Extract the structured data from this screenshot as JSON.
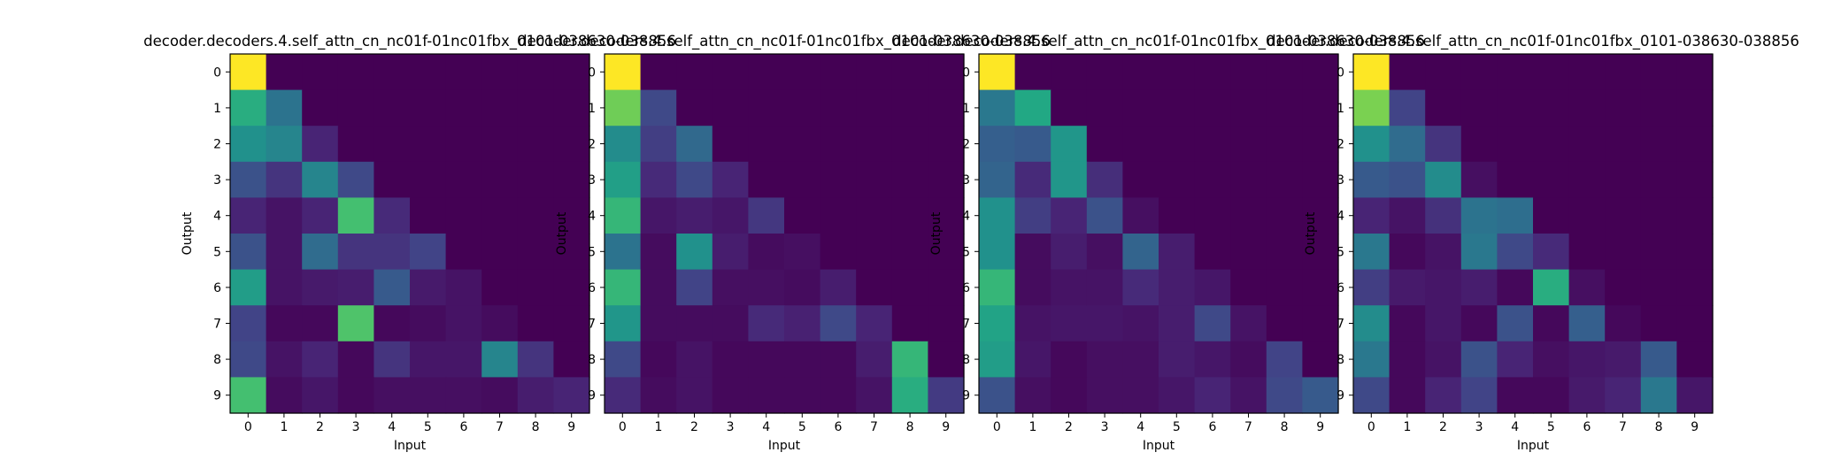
{
  "figure": {
    "background": "#ffffff",
    "colormap": "viridis"
  },
  "chart_data": [
    {
      "type": "heatmap",
      "title": "decoder.decoders.4.self_attn_cn_nc01f-01nc01fbx_0101-038630-038856",
      "xlabel": "Input",
      "ylabel": "Output",
      "x_ticks": [
        "0",
        "1",
        "2",
        "3",
        "4",
        "5",
        "6",
        "7",
        "8",
        "9"
      ],
      "y_ticks": [
        "0",
        "1",
        "2",
        "3",
        "4",
        "5",
        "6",
        "7",
        "8",
        "9"
      ],
      "grid": false,
      "values": [
        [
          1.0,
          0,
          0,
          0,
          0,
          0,
          0,
          0,
          0,
          0
        ],
        [
          0.62,
          0.38,
          0,
          0,
          0,
          0,
          0,
          0,
          0,
          0
        ],
        [
          0.5,
          0.45,
          0.1,
          0,
          0,
          0,
          0,
          0,
          0,
          0
        ],
        [
          0.25,
          0.15,
          0.45,
          0.22,
          0,
          0,
          0,
          0,
          0,
          0
        ],
        [
          0.1,
          0.05,
          0.1,
          0.7,
          0.12,
          0,
          0,
          0,
          0,
          0
        ],
        [
          0.25,
          0.05,
          0.35,
          0.15,
          0.15,
          0.2,
          0,
          0,
          0,
          0
        ],
        [
          0.55,
          0.05,
          0.07,
          0.08,
          0.28,
          0.07,
          0.05,
          0,
          0,
          0
        ],
        [
          0.2,
          0.02,
          0.02,
          0.72,
          0.02,
          0.03,
          0.05,
          0.03,
          0,
          0
        ],
        [
          0.22,
          0.05,
          0.1,
          0.02,
          0.15,
          0.06,
          0.06,
          0.45,
          0.15,
          0
        ],
        [
          0.7,
          0.03,
          0.06,
          0.02,
          0.04,
          0.04,
          0.04,
          0.03,
          0.08,
          0.1
        ]
      ]
    },
    {
      "type": "heatmap",
      "title": "decoder.decoders.4.self_attn_cn_nc01f-01nc01fbx_0101-038630-038856",
      "xlabel": "Input",
      "ylabel": "Output",
      "x_ticks": [
        "0",
        "1",
        "2",
        "3",
        "4",
        "5",
        "6",
        "7",
        "8",
        "9"
      ],
      "y_ticks": [
        "0",
        "1",
        "2",
        "3",
        "4",
        "5",
        "6",
        "7",
        "8",
        "9"
      ],
      "grid": false,
      "values": [
        [
          1.0,
          0,
          0,
          0,
          0,
          0,
          0,
          0,
          0,
          0
        ],
        [
          0.78,
          0.22,
          0,
          0,
          0,
          0,
          0,
          0,
          0,
          0
        ],
        [
          0.48,
          0.18,
          0.34,
          0,
          0,
          0,
          0,
          0,
          0,
          0
        ],
        [
          0.56,
          0.12,
          0.22,
          0.1,
          0,
          0,
          0,
          0,
          0,
          0
        ],
        [
          0.66,
          0.06,
          0.08,
          0.06,
          0.16,
          0,
          0,
          0,
          0,
          0
        ],
        [
          0.38,
          0.03,
          0.5,
          0.08,
          0.03,
          0.04,
          0,
          0,
          0,
          0
        ],
        [
          0.66,
          0.03,
          0.2,
          0.04,
          0.04,
          0.03,
          0.08,
          0,
          0,
          0
        ],
        [
          0.52,
          0.03,
          0.03,
          0.03,
          0.12,
          0.09,
          0.22,
          0.1,
          0,
          0
        ],
        [
          0.22,
          0.02,
          0.05,
          0.02,
          0.02,
          0.02,
          0.02,
          0.08,
          0.66,
          0
        ],
        [
          0.12,
          0.03,
          0.05,
          0.02,
          0.02,
          0.02,
          0.02,
          0.05,
          0.62,
          0.17
        ]
      ]
    },
    {
      "type": "heatmap",
      "title": "decoder.decoders.4.self_attn_cn_nc01f-01nc01fbx_0101-038630-038856",
      "xlabel": "Input",
      "ylabel": "Output",
      "x_ticks": [
        "0",
        "1",
        "2",
        "3",
        "4",
        "5",
        "6",
        "7",
        "8",
        "9"
      ],
      "y_ticks": [
        "0",
        "1",
        "2",
        "3",
        "4",
        "5",
        "6",
        "7",
        "8",
        "9"
      ],
      "grid": false,
      "values": [
        [
          1.0,
          0,
          0,
          0,
          0,
          0,
          0,
          0,
          0,
          0
        ],
        [
          0.4,
          0.6,
          0,
          0,
          0,
          0,
          0,
          0,
          0,
          0
        ],
        [
          0.3,
          0.28,
          0.52,
          0,
          0,
          0,
          0,
          0,
          0,
          0
        ],
        [
          0.32,
          0.12,
          0.52,
          0.13,
          0,
          0,
          0,
          0,
          0,
          0
        ],
        [
          0.5,
          0.18,
          0.1,
          0.25,
          0.04,
          0,
          0,
          0,
          0,
          0
        ],
        [
          0.5,
          0.03,
          0.08,
          0.04,
          0.32,
          0.08,
          0,
          0,
          0,
          0
        ],
        [
          0.66,
          0.03,
          0.05,
          0.05,
          0.12,
          0.08,
          0.06,
          0,
          0,
          0
        ],
        [
          0.58,
          0.05,
          0.06,
          0.06,
          0.05,
          0.08,
          0.22,
          0.05,
          0,
          0
        ],
        [
          0.55,
          0.06,
          0.02,
          0.04,
          0.04,
          0.08,
          0.06,
          0.03,
          0.2,
          0
        ],
        [
          0.25,
          0.04,
          0.02,
          0.04,
          0.04,
          0.06,
          0.1,
          0.05,
          0.22,
          0.28
        ]
      ]
    },
    {
      "type": "heatmap",
      "title": "decoder.decoders.4.self_attn_cn_nc01f-01nc01fbx_0101-038630-038856",
      "xlabel": "Input",
      "ylabel": "Output",
      "x_ticks": [
        "0",
        "1",
        "2",
        "3",
        "4",
        "5",
        "6",
        "7",
        "8",
        "9"
      ],
      "y_ticks": [
        "0",
        "1",
        "2",
        "3",
        "4",
        "5",
        "6",
        "7",
        "8",
        "9"
      ],
      "grid": false,
      "values": [
        [
          1.0,
          0,
          0,
          0,
          0,
          0,
          0,
          0,
          0,
          0
        ],
        [
          0.8,
          0.2,
          0,
          0,
          0,
          0,
          0,
          0,
          0,
          0
        ],
        [
          0.5,
          0.35,
          0.15,
          0,
          0,
          0,
          0,
          0,
          0,
          0
        ],
        [
          0.28,
          0.25,
          0.48,
          0.04,
          0,
          0,
          0,
          0,
          0,
          0
        ],
        [
          0.1,
          0.05,
          0.14,
          0.38,
          0.36,
          0,
          0,
          0,
          0,
          0
        ],
        [
          0.4,
          0.02,
          0.05,
          0.4,
          0.22,
          0.12,
          0,
          0,
          0,
          0
        ],
        [
          0.18,
          0.07,
          0.06,
          0.08,
          0.02,
          0.62,
          0.04,
          0,
          0,
          0
        ],
        [
          0.48,
          0.02,
          0.06,
          0.02,
          0.25,
          0.02,
          0.3,
          0.02,
          0,
          0
        ],
        [
          0.4,
          0.02,
          0.05,
          0.25,
          0.1,
          0.04,
          0.06,
          0.07,
          0.28,
          0
        ],
        [
          0.22,
          0.02,
          0.1,
          0.2,
          0.02,
          0.02,
          0.07,
          0.1,
          0.4,
          0.06
        ]
      ]
    }
  ]
}
